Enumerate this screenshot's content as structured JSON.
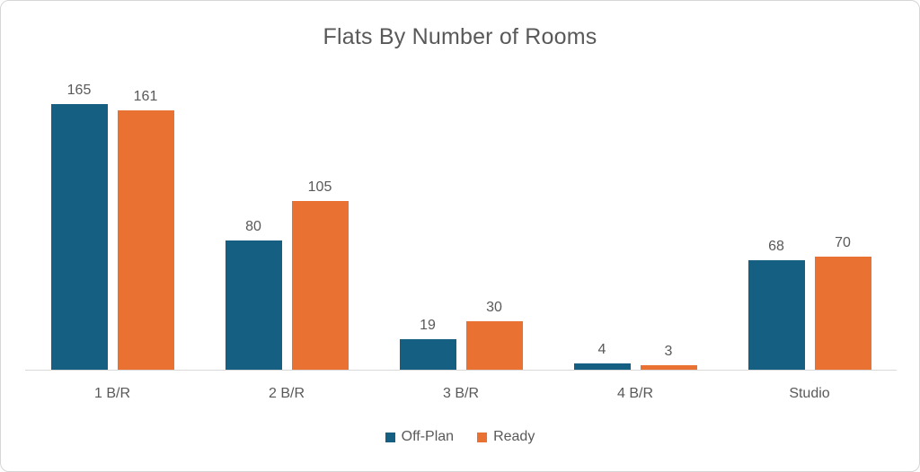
{
  "title": "Flats By Number of Rooms",
  "colors": {
    "off_plan": "#156082",
    "ready": "#E97132",
    "text_gray": "#595959",
    "axis_line": "#D9D9D9",
    "frame_border": "#D6D6D6",
    "background": "#FFFFFF"
  },
  "chart_data": {
    "type": "bar",
    "title": "Flats By Number of Rooms",
    "categories": [
      "1 B/R",
      "2 B/R",
      "3 B/R",
      "4 B/R",
      "Studio"
    ],
    "series": [
      {
        "name": "Off-Plan",
        "color": "#156082",
        "values": [
          165,
          80,
          19,
          4,
          68
        ]
      },
      {
        "name": "Ready",
        "color": "#E97132",
        "values": [
          161,
          105,
          30,
          3,
          70
        ]
      }
    ],
    "xlabel": "",
    "ylabel": "",
    "ylim": [
      0,
      184
    ],
    "grid": false,
    "data_labels": true,
    "legend_position": "bottom"
  }
}
